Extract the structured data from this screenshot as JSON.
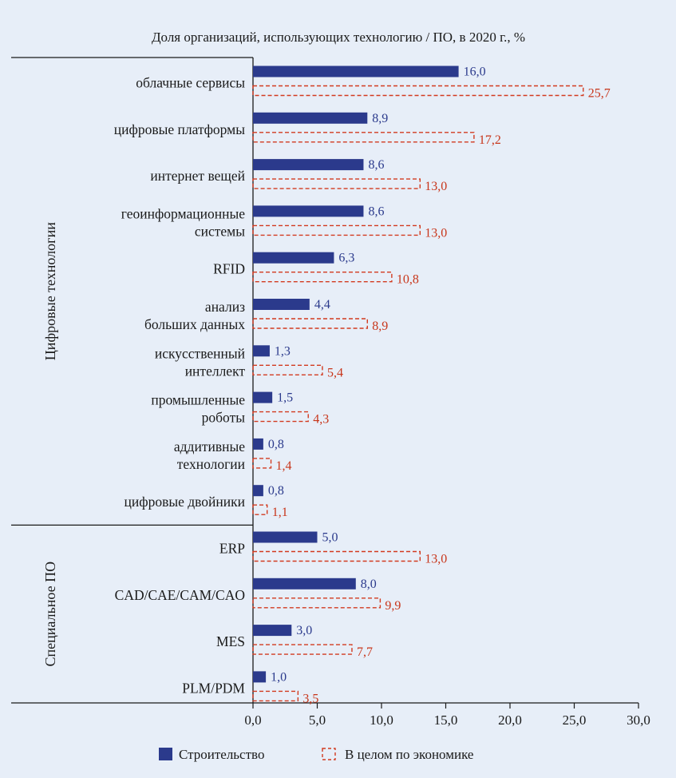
{
  "chart_data": {
    "type": "bar",
    "orientation": "horizontal",
    "title": "Доля организаций, использующих технологию / ПО, в 2020 г., %",
    "groups": [
      {
        "name": "Цифровые технологии",
        "categories": [
          [
            "облачные сервисы"
          ],
          [
            "цифровые платформы"
          ],
          [
            "интернет вещей"
          ],
          [
            "геоинформационные",
            "системы"
          ],
          [
            "RFID"
          ],
          [
            "анализ",
            "больших данных"
          ],
          [
            "искусственный",
            "интеллект"
          ],
          [
            "промышленные",
            "роботы"
          ],
          [
            "аддитивные",
            "технологии"
          ],
          [
            "цифровые двойники"
          ]
        ]
      },
      {
        "name": "Специальное ПО",
        "categories": [
          [
            "ERP"
          ],
          [
            "CAD/CAE/CAM/CAO"
          ],
          [
            "MES"
          ],
          [
            "PLM/PDM"
          ]
        ]
      }
    ],
    "series": [
      {
        "name": "Строительство",
        "style": "filled",
        "color": "#2b3a8c",
        "label_color": "#2b3a8c",
        "values": [
          16.0,
          8.9,
          8.6,
          8.6,
          6.3,
          4.4,
          1.3,
          1.5,
          0.8,
          0.8,
          5.0,
          8.0,
          3.0,
          1.0
        ],
        "labels": [
          "16,0",
          "8,9",
          "8,6",
          "8,6",
          "6,3",
          "4,4",
          "1,3",
          "1,5",
          "0,8",
          "0,8",
          "5,0",
          "8,0",
          "3,0",
          "1,0"
        ]
      },
      {
        "name": "В целом по экономике",
        "style": "dashed-outline",
        "color": "#d23a1f",
        "label_color": "#c8361b",
        "values": [
          25.7,
          17.2,
          13.0,
          13.0,
          10.8,
          8.9,
          5.4,
          4.3,
          1.4,
          1.1,
          13.0,
          9.9,
          7.7,
          3.5
        ],
        "labels": [
          "25,7",
          "17,2",
          "13,0",
          "13,0",
          "10,8",
          "8,9",
          "5,4",
          "4,3",
          "1,4",
          "1,1",
          "13,0",
          "9,9",
          "7,7",
          "3,5"
        ]
      }
    ],
    "xlim": [
      0,
      30
    ],
    "xticks": [
      0,
      5,
      10,
      15,
      20,
      25,
      30
    ],
    "xtick_labels": [
      "0,0",
      "5,0",
      "10,0",
      "15,0",
      "20,0",
      "25,0",
      "30,0"
    ],
    "grid": false,
    "legend_position": "bottom"
  }
}
